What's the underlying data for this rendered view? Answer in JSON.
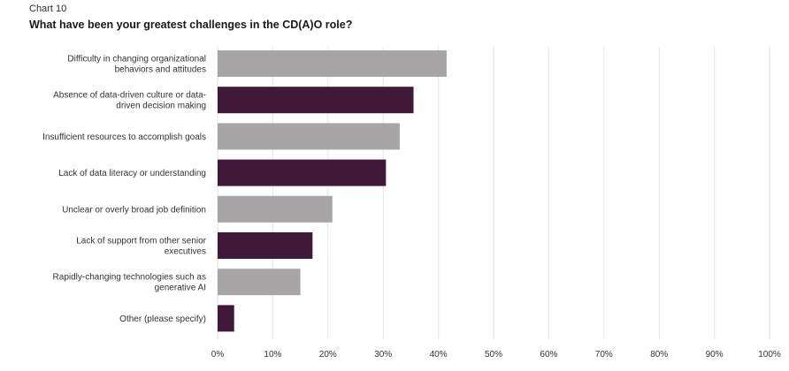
{
  "header": {
    "chart_number": "Chart 10",
    "title": "What have been your greatest challenges in the CD(A)O role?"
  },
  "colors": {
    "gray": "#a8a5a6",
    "purple": "#3e1a38",
    "grid": "#e6e6e6"
  },
  "chart_data": {
    "type": "bar",
    "orientation": "horizontal",
    "title": "What have been your greatest challenges in the CD(A)O role?",
    "categories": [
      [
        "Difficulty in changing organizational",
        "behaviors and attitudes"
      ],
      [
        "Absence of data-driven culture or data-",
        "driven decision making"
      ],
      [
        "Insufficient resources to accomplish goals"
      ],
      [
        "Lack of data literacy or understanding"
      ],
      [
        "Unclear or overly broad job definition"
      ],
      [
        "Lack of support from other senior",
        "executives"
      ],
      [
        "Rapidly-changing technologies such as",
        "generative AI"
      ],
      [
        "Other (please specify)"
      ]
    ],
    "values": [
      41.5,
      35.5,
      33,
      30.5,
      20.8,
      17.2,
      15,
      3
    ],
    "bar_colors": [
      "gray",
      "purple",
      "gray",
      "purple",
      "gray",
      "purple",
      "gray",
      "purple"
    ],
    "xlim": [
      0,
      100
    ],
    "xticks": [
      "0%",
      "10%",
      "20%",
      "30%",
      "40%",
      "50%",
      "60%",
      "70%",
      "80%",
      "90%",
      "100%"
    ],
    "grid": true,
    "legend": "none"
  }
}
